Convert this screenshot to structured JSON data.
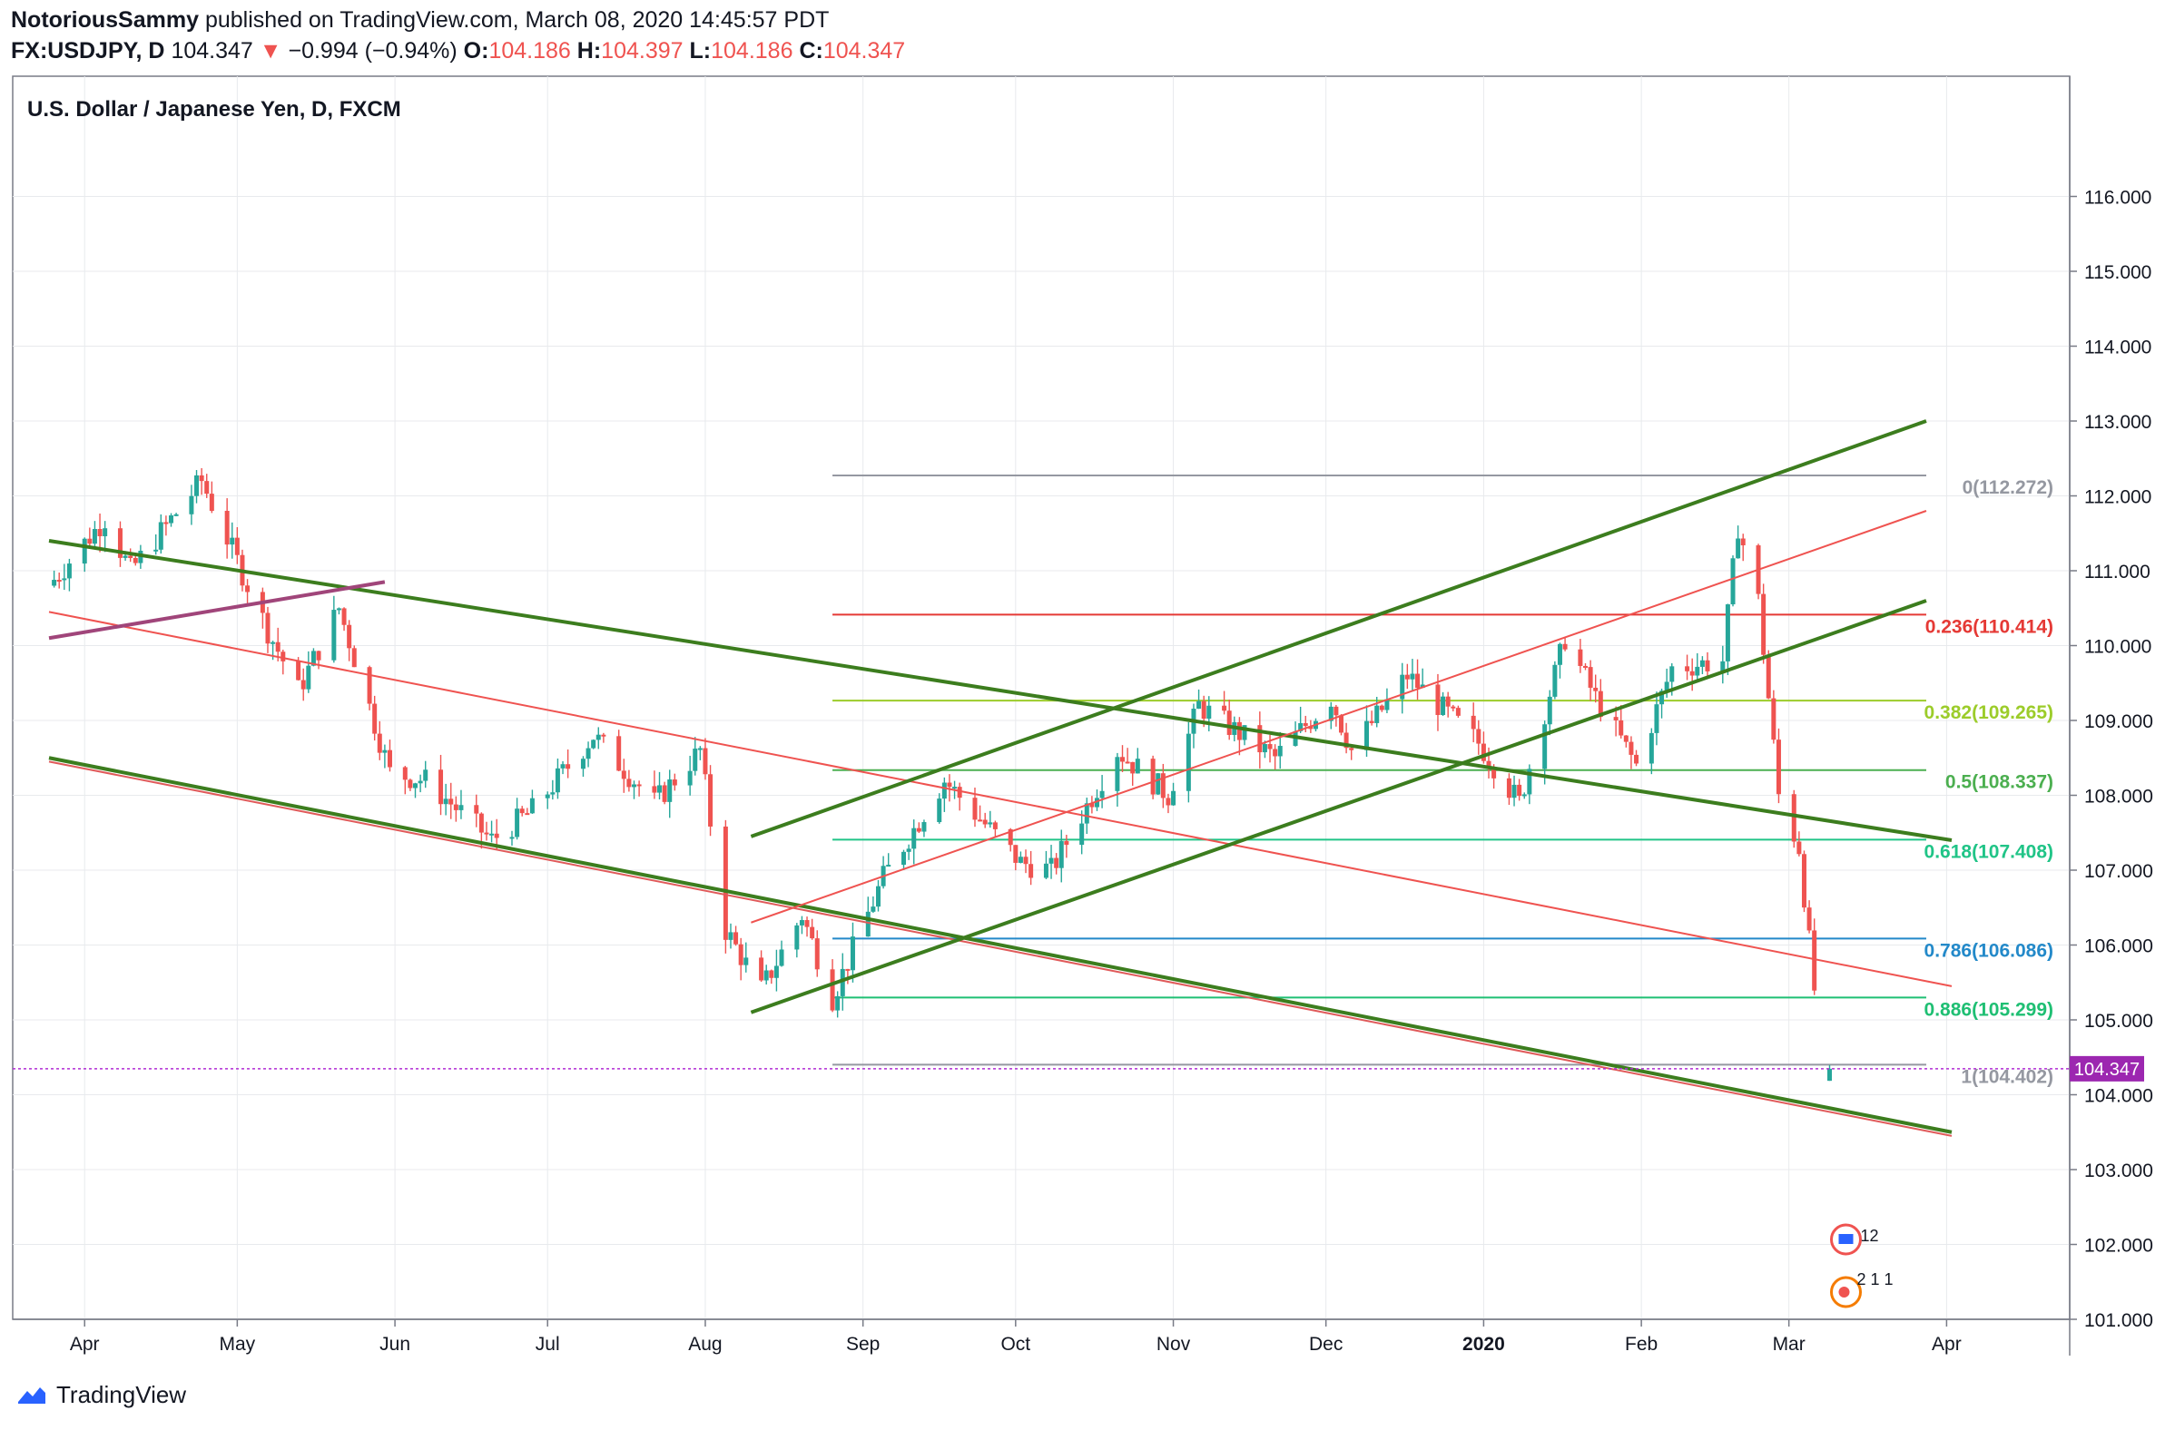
{
  "header": {
    "author": "NotoriousSammy",
    "published": "published on TradingView.com, March 08, 2020 14:45:57 PDT",
    "symbol": "FX:USDJPY, D",
    "last": "104.347",
    "change_arrow": "▼",
    "change": "−0.994 (−0.94%)",
    "o_label": "O:",
    "o": "104.186",
    "h_label": "H:",
    "h": "104.397",
    "l_label": "L:",
    "l": "104.186",
    "c_label": "C:",
    "c": "104.347"
  },
  "footer": {
    "brand": "TradingView"
  },
  "colors": {
    "up": "#26a69a",
    "down": "#ef5350",
    "channel": "#3c7d1e",
    "grid": "#e8eaed"
  },
  "chart_data": {
    "type": "candlestick",
    "title": "U.S. Dollar / Japanese Yen, D, FXCM",
    "ylim": [
      100.0,
      116.5
    ],
    "y_ticks": [
      "116.000",
      "115.000",
      "114.000",
      "113.000",
      "112.000",
      "111.000",
      "110.000",
      "109.000",
      "108.000",
      "107.000",
      "106.000",
      "105.000",
      "104.000",
      "103.000",
      "102.000",
      "101.000"
    ],
    "x_ticks": [
      {
        "label": "Apr",
        "date": "2019-04-01"
      },
      {
        "label": "May",
        "date": "2019-05-01"
      },
      {
        "label": "Jun",
        "date": "2019-06-01"
      },
      {
        "label": "Jul",
        "date": "2019-07-01"
      },
      {
        "label": "Aug",
        "date": "2019-08-01"
      },
      {
        "label": "Sep",
        "date": "2019-09-01"
      },
      {
        "label": "Oct",
        "date": "2019-10-01"
      },
      {
        "label": "Nov",
        "date": "2019-11-01"
      },
      {
        "label": "Dec",
        "date": "2019-12-01"
      },
      {
        "label": "2020",
        "date": "2020-01-01",
        "bold": true
      },
      {
        "label": "Feb",
        "date": "2020-02-01"
      },
      {
        "label": "Mar",
        "date": "2020-03-01"
      },
      {
        "label": "Apr",
        "date": "2020-04-01"
      }
    ],
    "last_price": {
      "value": 104.347,
      "label": "104.347"
    },
    "price_path": [
      [
        "2019-03-25",
        110.8
      ],
      [
        "2019-04-05",
        111.7
      ],
      [
        "2019-04-10",
        111.0
      ],
      [
        "2019-04-24",
        112.2
      ],
      [
        "2019-05-07",
        110.2
      ],
      [
        "2019-05-13",
        109.4
      ],
      [
        "2019-05-21",
        110.5
      ],
      [
        "2019-05-31",
        108.3
      ],
      [
        "2019-06-07",
        108.2
      ],
      [
        "2019-06-20",
        107.4
      ],
      [
        "2019-06-28",
        107.8
      ],
      [
        "2019-07-10",
        108.8
      ],
      [
        "2019-07-22",
        107.9
      ],
      [
        "2019-07-31",
        108.6
      ],
      [
        "2019-08-05",
        106.2
      ],
      [
        "2019-08-12",
        105.4
      ],
      [
        "2019-08-20",
        106.4
      ],
      [
        "2019-08-26",
        105.3
      ],
      [
        "2019-09-05",
        106.9
      ],
      [
        "2019-09-17",
        108.2
      ],
      [
        "2019-10-02",
        107.1
      ],
      [
        "2019-10-08",
        107.0
      ],
      [
        "2019-10-21",
        108.6
      ],
      [
        "2019-10-31",
        108.0
      ],
      [
        "2019-11-06",
        109.2
      ],
      [
        "2019-11-21",
        108.5
      ],
      [
        "2019-12-02",
        109.3
      ],
      [
        "2019-12-06",
        108.6
      ],
      [
        "2019-12-17",
        109.6
      ],
      [
        "2019-12-31",
        108.7
      ],
      [
        "2020-01-08",
        107.9
      ],
      [
        "2020-01-17",
        110.1
      ],
      [
        "2020-01-23",
        109.3
      ],
      [
        "2020-01-31",
        108.4
      ],
      [
        "2020-02-07",
        109.7
      ],
      [
        "2020-02-17",
        109.8
      ],
      [
        "2020-02-20",
        111.6
      ],
      [
        "2020-02-24",
        110.6
      ],
      [
        "2020-02-28",
        108.0
      ],
      [
        "2020-03-03",
        107.3
      ],
      [
        "2020-03-06",
        105.4
      ],
      [
        "2020-03-09",
        104.35
      ]
    ],
    "fib_levels": [
      {
        "ratio": "0",
        "label": "0(112.272)",
        "value": 112.272,
        "color": "#9598a1",
        "start": "2019-08-26"
      },
      {
        "ratio": "0.236",
        "label": "0.236(110.414)",
        "value": 110.414,
        "color": "#e53935",
        "start": "2019-08-26"
      },
      {
        "ratio": "0.382",
        "label": "0.382(109.265)",
        "value": 109.265,
        "color": "#9ccc2a",
        "start": "2019-08-26"
      },
      {
        "ratio": "0.5",
        "label": "0.5(108.337)",
        "value": 108.337,
        "color": "#4caf50",
        "start": "2019-08-26"
      },
      {
        "ratio": "0.618",
        "label": "0.618(107.408)",
        "value": 107.408,
        "color": "#20c487",
        "start": "2019-08-26"
      },
      {
        "ratio": "0.786",
        "label": "0.786(106.086)",
        "value": 106.086,
        "color": "#2389c9",
        "start": "2019-08-26"
      },
      {
        "ratio": "0.886",
        "label": "0.886(105.299)",
        "value": 105.299,
        "color": "#1fbf73",
        "start": "2019-08-26"
      },
      {
        "ratio": "1",
        "label": "1(104.402)",
        "value": 104.402,
        "color": "#9598a1",
        "start": "2019-08-26"
      }
    ],
    "trendlines": [
      {
        "name": "descending-channel-upper",
        "color": "#3c7d1e",
        "width": 4,
        "p1": [
          "2019-03-25",
          111.4
        ],
        "p2": [
          "2020-04-02",
          107.4
        ]
      },
      {
        "name": "descending-channel-lower",
        "color": "#3c7d1e",
        "width": 4,
        "p1": [
          "2019-03-25",
          108.5
        ],
        "p2": [
          "2020-04-02",
          103.5
        ]
      },
      {
        "name": "descending-channel-lower-red",
        "color": "#e05a5a",
        "width": 2,
        "p1": [
          "2019-03-25",
          108.45
        ],
        "p2": [
          "2020-04-02",
          103.45
        ]
      },
      {
        "name": "descending-channel-mid",
        "color": "#ef5350",
        "width": 2,
        "p1": [
          "2019-03-25",
          110.45
        ],
        "p2": [
          "2020-04-02",
          105.45
        ]
      },
      {
        "name": "rising-channel-upper",
        "color": "#3c7d1e",
        "width": 4,
        "p1": [
          "2019-08-10",
          107.45
        ],
        "p2": [
          "2020-03-28",
          113.0
        ]
      },
      {
        "name": "rising-channel-lower",
        "color": "#3c7d1e",
        "width": 4,
        "p1": [
          "2019-08-10",
          105.1
        ],
        "p2": [
          "2020-03-28",
          110.6
        ]
      },
      {
        "name": "rising-channel-mid",
        "color": "#ef5350",
        "width": 2,
        "p1": [
          "2019-08-10",
          106.3
        ],
        "p2": [
          "2020-03-28",
          111.8
        ]
      },
      {
        "name": "early-trendline",
        "color": "#a0457a",
        "width": 4,
        "p1": [
          "2019-03-25",
          110.1
        ],
        "p2": [
          "2019-05-30",
          110.85
        ]
      }
    ],
    "events": {
      "calendar_count": "12",
      "earnings": "2 1 1"
    }
  }
}
